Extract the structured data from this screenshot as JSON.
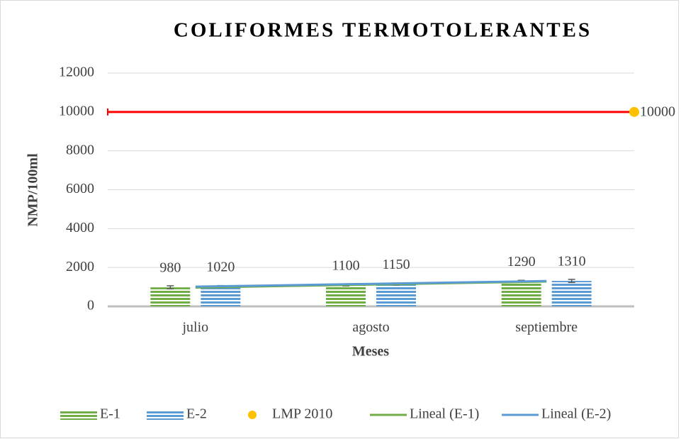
{
  "chart_data": {
    "type": "bar",
    "title": "COLIFORMES TERMOTOLERANTES",
    "x_label": "Meses",
    "y_label": "NMP/100ml",
    "categories": [
      "julio",
      "agosto",
      "septiembre"
    ],
    "series": [
      {
        "name": "E-1",
        "color": "#70ad47",
        "values": [
          980,
          1100,
          1290
        ],
        "errors": [
          80,
          50,
          50
        ]
      },
      {
        "name": "E-2",
        "color": "#5b9bd5",
        "values": [
          1020,
          1150,
          1310
        ],
        "errors": [
          50,
          50,
          80
        ]
      }
    ],
    "limit": {
      "name": "LMP 2010",
      "color": "#ff0000",
      "marker_color": "#ffc000",
      "values": [
        10000
      ]
    },
    "trendlines": [
      {
        "name": "Lineal (E-1)",
        "color": "#70ad47",
        "values": [
          968,
          1123,
          1278
        ]
      },
      {
        "name": "Lineal (E-2)",
        "color": "#5b9bd5",
        "values": [
          1015,
          1160,
          1305
        ]
      }
    ],
    "ylim": [
      0,
      12000
    ],
    "yticks": [
      0,
      2000,
      4000,
      6000,
      8000,
      10000,
      12000
    ],
    "grid": true
  }
}
